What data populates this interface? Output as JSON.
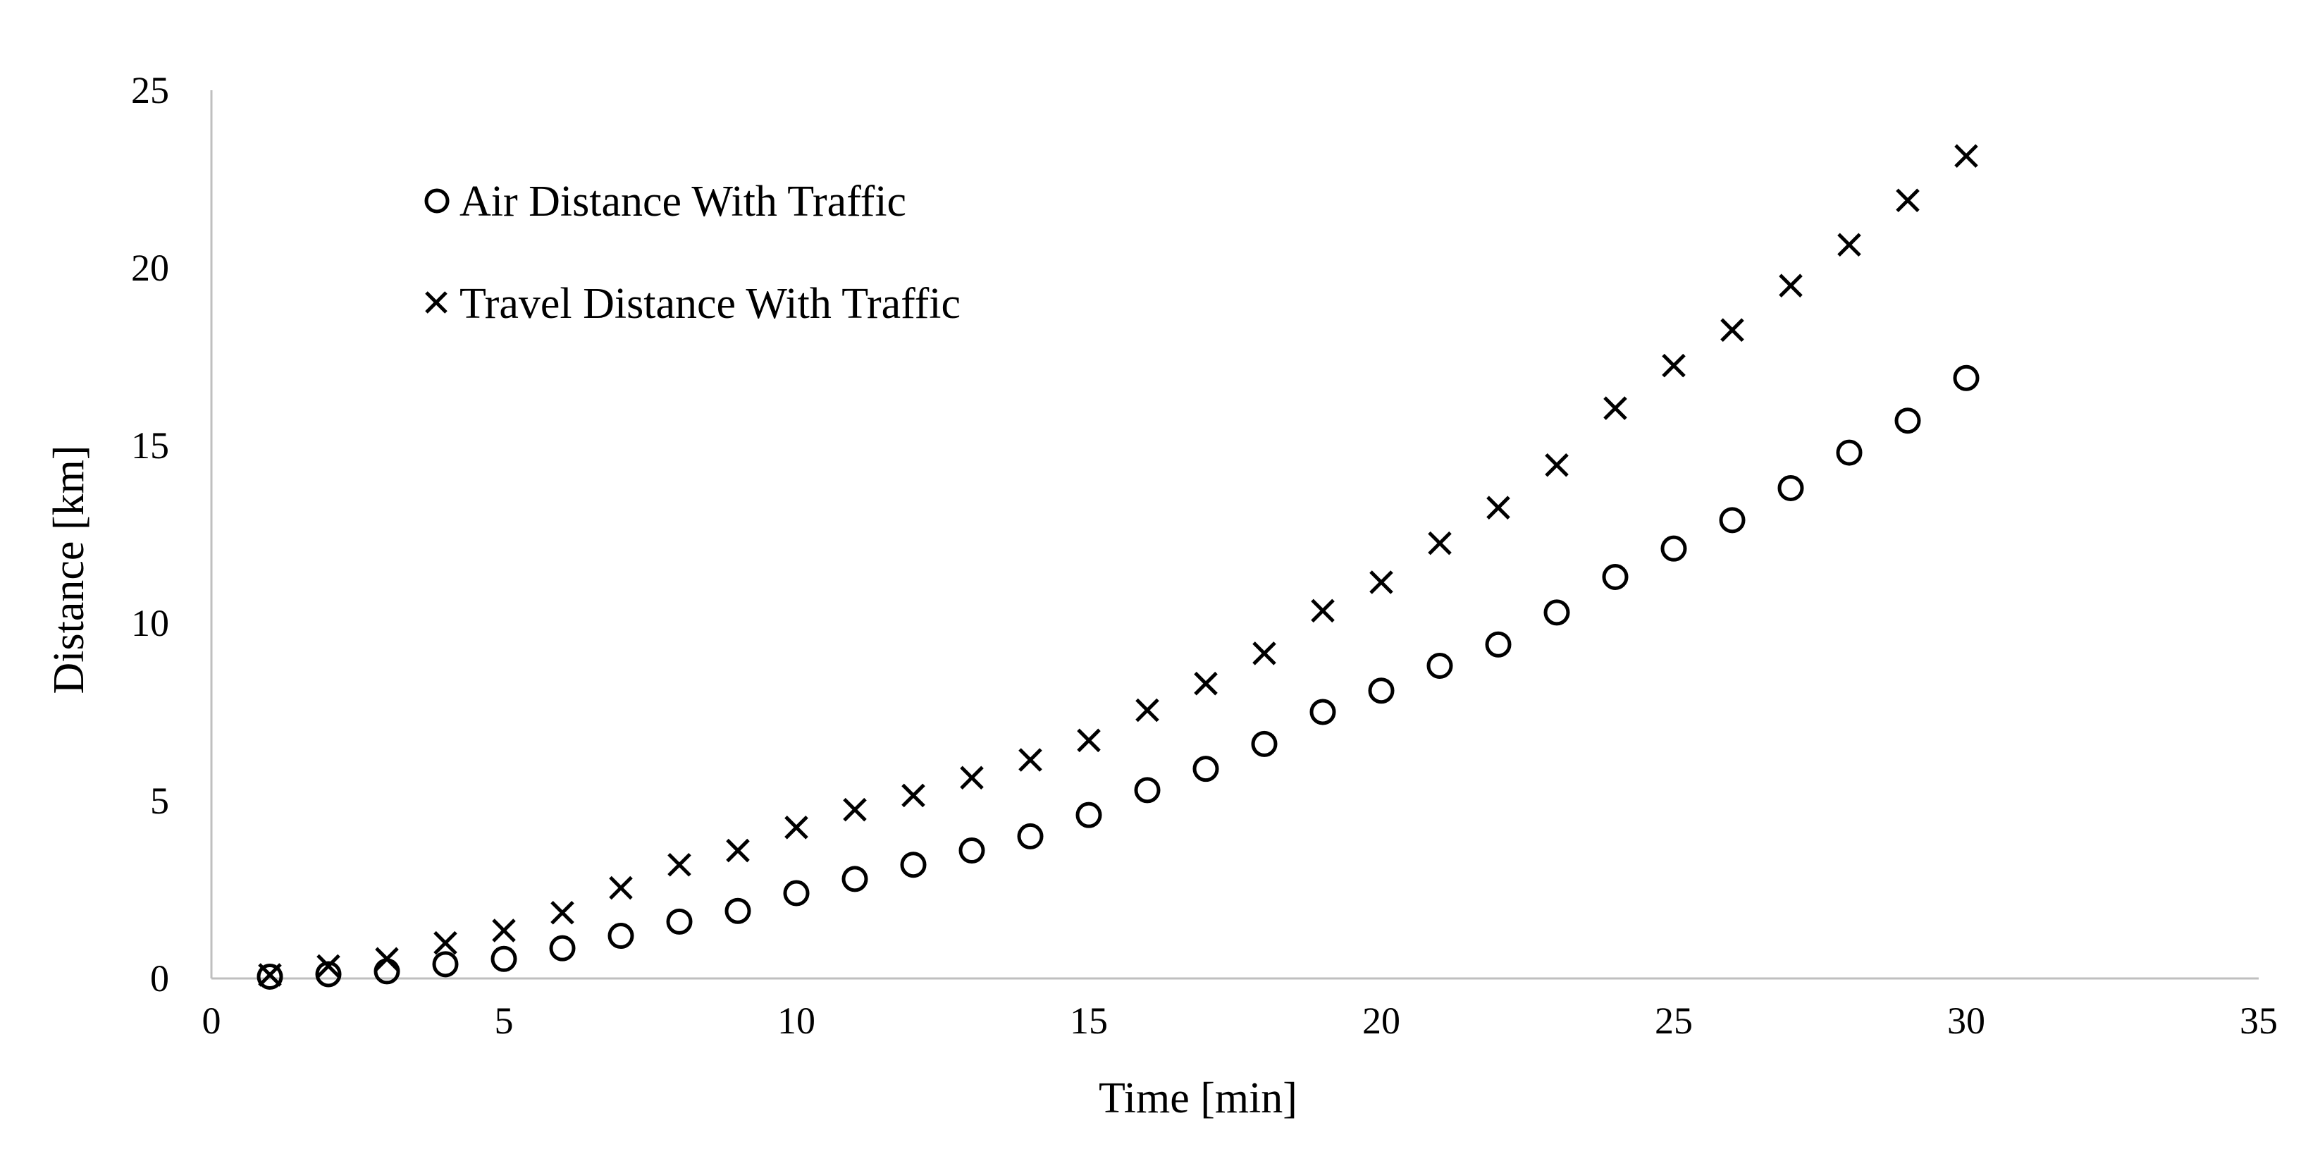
{
  "chart_data": {
    "type": "scatter",
    "title": "",
    "xlabel": "Time [min]",
    "ylabel": "Distance [km]",
    "xlim": [
      0,
      35
    ],
    "ylim": [
      0,
      25
    ],
    "x_ticks": [
      "0",
      "5",
      "10",
      "15",
      "20",
      "25",
      "30",
      "35"
    ],
    "y_ticks": [
      "0",
      "5",
      "10",
      "15",
      "20",
      "25"
    ],
    "grid": false,
    "legend_position": "top-left",
    "series": [
      {
        "name": "Air Distance With Traffic",
        "marker": "circle",
        "color": "#000000",
        "x": [
          1,
          2,
          3,
          4,
          5,
          6,
          7,
          8,
          9,
          10,
          11,
          12,
          13,
          14,
          15,
          16,
          17,
          18,
          19,
          20,
          21,
          22,
          23,
          24,
          25,
          26,
          27,
          28,
          29,
          30
        ],
        "y": [
          0.05,
          0.12,
          0.2,
          0.4,
          0.55,
          0.85,
          1.2,
          1.6,
          1.9,
          2.4,
          2.8,
          3.2,
          3.6,
          4.0,
          4.6,
          5.3,
          5.9,
          6.6,
          7.5,
          8.1,
          8.8,
          9.4,
          10.3,
          11.3,
          12.1,
          12.9,
          13.8,
          14.8,
          15.7,
          16.9
        ]
      },
      {
        "name": "Travel Distance With Traffic",
        "marker": "x",
        "color": "#000000",
        "x": [
          1,
          2,
          3,
          4,
          5,
          6,
          7,
          8,
          9,
          10,
          11,
          12,
          13,
          14,
          15,
          16,
          17,
          18,
          19,
          20,
          21,
          22,
          23,
          24,
          25,
          26,
          27,
          28,
          29,
          30
        ],
        "y": [
          0.1,
          0.35,
          0.55,
          1.0,
          1.35,
          1.85,
          2.55,
          3.2,
          3.6,
          4.25,
          4.75,
          5.15,
          5.65,
          6.15,
          6.7,
          7.55,
          8.3,
          9.15,
          10.35,
          11.15,
          12.25,
          13.25,
          14.45,
          16.05,
          17.25,
          18.25,
          19.5,
          20.65,
          21.9,
          23.15
        ]
      }
    ]
  }
}
